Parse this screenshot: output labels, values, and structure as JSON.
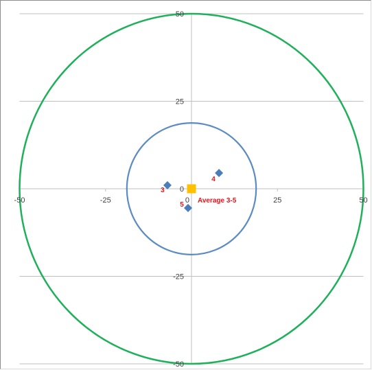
{
  "chart_data": {
    "type": "scatter",
    "title": "",
    "xlabel": "",
    "ylabel": "",
    "xlim": [
      -50,
      50
    ],
    "ylim": [
      -50,
      50
    ],
    "x_ticks": [
      -50,
      -25,
      0,
      25,
      50
    ],
    "y_ticks": [
      -50,
      -25,
      0,
      25,
      50
    ],
    "x_tick_labels": [
      "-50",
      "-25",
      "0",
      "25",
      "50"
    ],
    "y_tick_labels": [
      "-50",
      "-25",
      "0",
      "25",
      "50"
    ],
    "grid": true,
    "legend": "none",
    "circles": [
      {
        "radius": 50,
        "color": "#1fb05a"
      },
      {
        "radius": 18.8,
        "color": "#5b8bc3"
      }
    ],
    "series": [
      {
        "marker": "diamond",
        "color": "#4a7ebb",
        "points": [
          {
            "label": "3",
            "x": -7,
            "y": 1
          },
          {
            "label": "4",
            "x": 8,
            "y": 4.5
          },
          {
            "label": "5",
            "x": -1,
            "y": -5.5
          }
        ]
      },
      {
        "marker": "square",
        "color": "#ffc000",
        "points": [
          {
            "label": "Average 3-5",
            "x": 0,
            "y": 0
          }
        ]
      }
    ],
    "colors": {
      "grid": "#bfbfbf",
      "label": "#e8141c"
    }
  }
}
